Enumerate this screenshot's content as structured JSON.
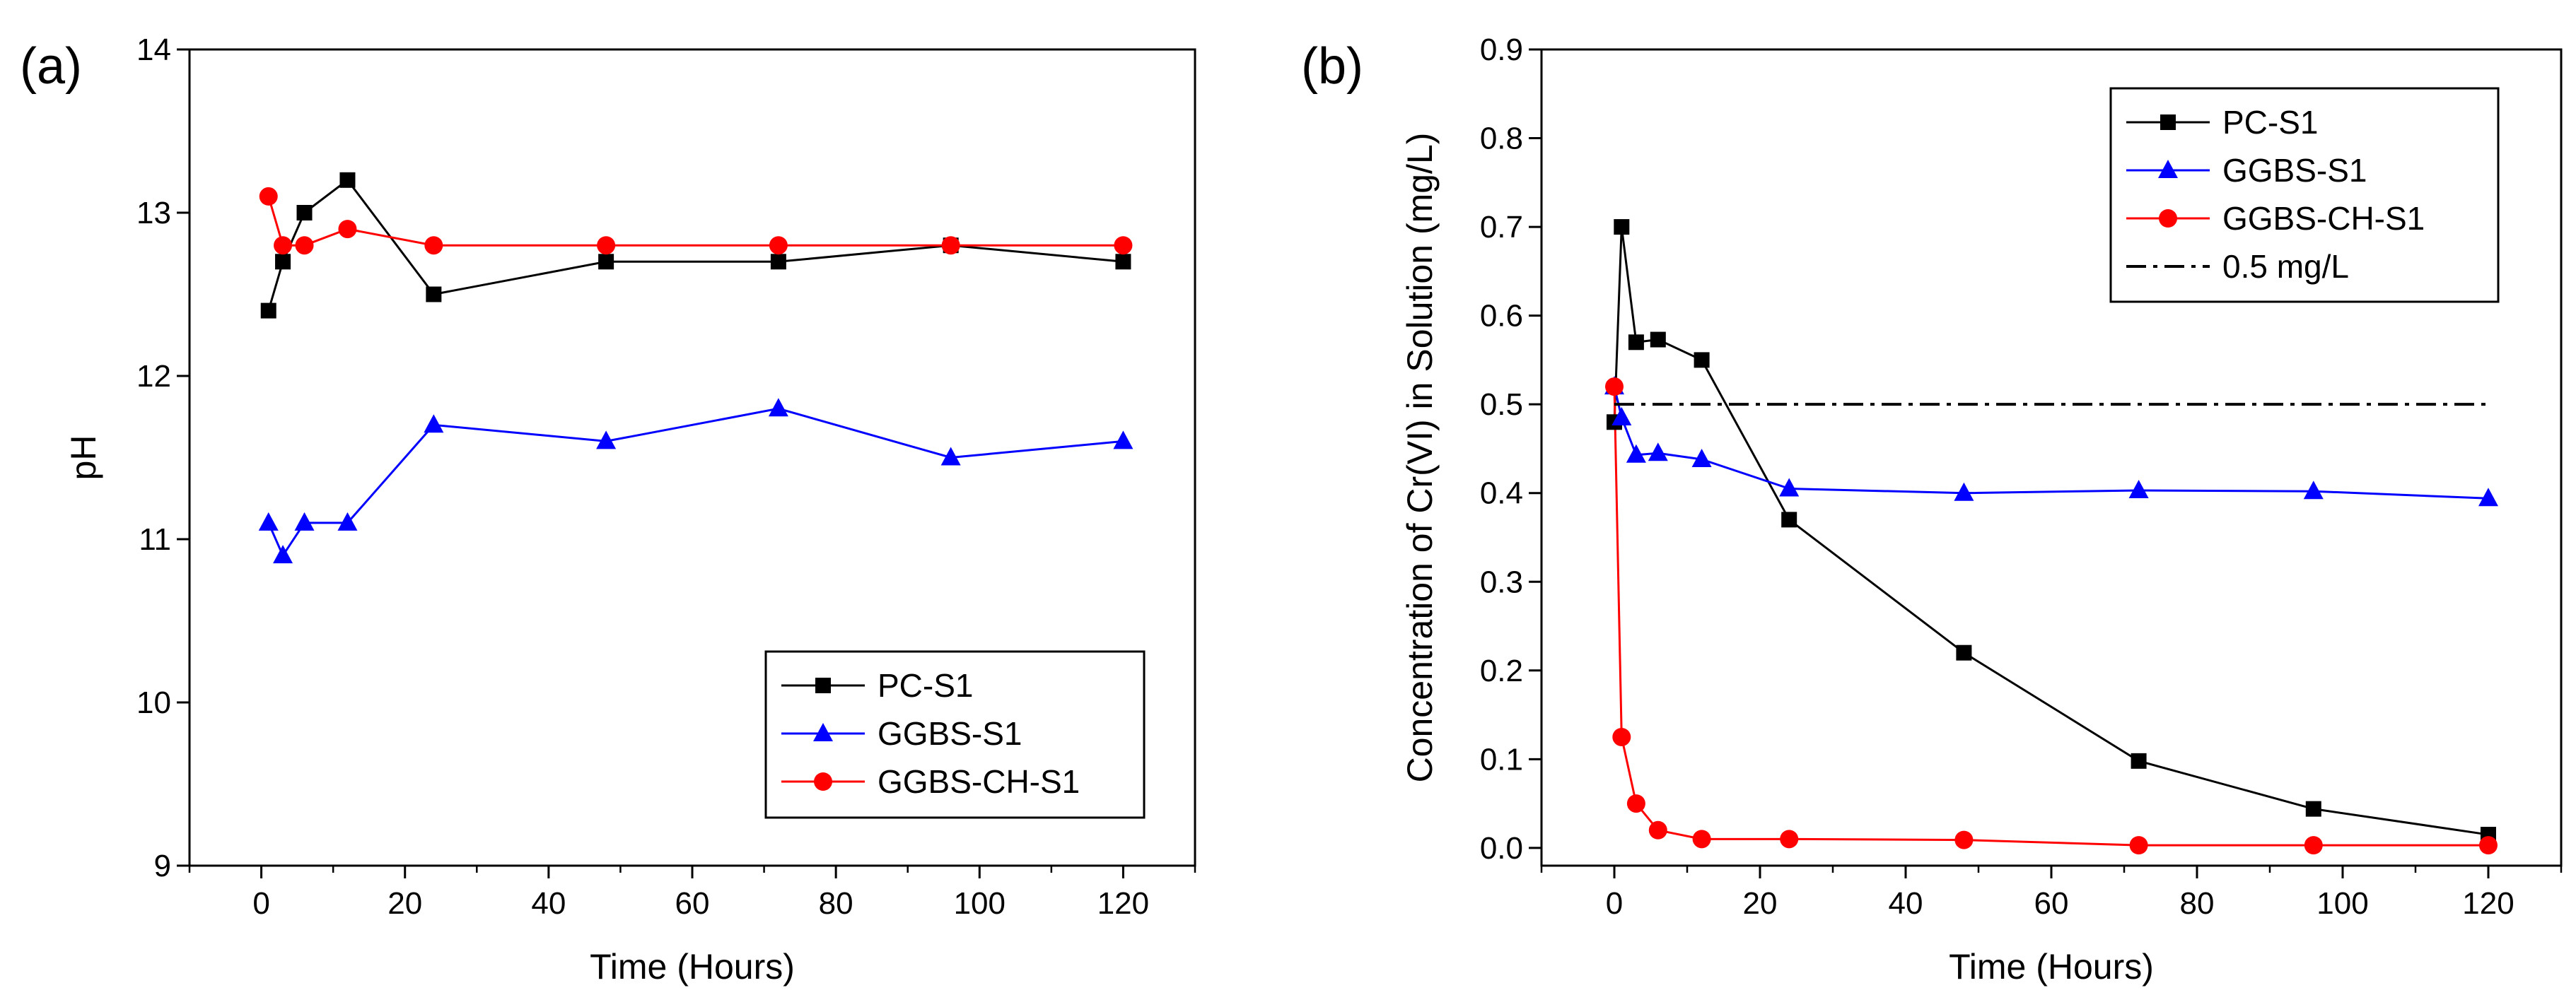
{
  "chart_data": [
    {
      "type": "line",
      "panel_label": "(a)",
      "title": "",
      "xlabel": "Time (Hours)",
      "ylabel": "pH",
      "xlim": [
        -10,
        130
      ],
      "ylim": [
        9,
        14
      ],
      "xticks": [
        0,
        20,
        40,
        60,
        80,
        100,
        120
      ],
      "yticks": [
        9,
        10,
        11,
        12,
        13,
        14
      ],
      "xtick_labels": [
        "0",
        "20",
        "40",
        "60",
        "80",
        "100",
        "120"
      ],
      "ytick_labels": [
        "9",
        "10",
        "11",
        "12",
        "13",
        "14"
      ],
      "legend_position": "bottom-right",
      "series": [
        {
          "name": "PC-S1",
          "color": "#000000",
          "marker": "square",
          "x": [
            1,
            3,
            6,
            12,
            24,
            48,
            72,
            96,
            120
          ],
          "y": [
            12.4,
            12.7,
            13.0,
            13.2,
            12.5,
            12.7,
            12.7,
            12.8,
            12.7
          ]
        },
        {
          "name": "GGBS-S1",
          "color": "#0000ff",
          "marker": "triangle",
          "x": [
            1,
            3,
            6,
            12,
            24,
            48,
            72,
            96,
            120
          ],
          "y": [
            11.1,
            10.9,
            11.1,
            11.1,
            11.7,
            11.6,
            11.8,
            11.5,
            11.6
          ]
        },
        {
          "name": "GGBS-CH-S1",
          "color": "#ff0000",
          "marker": "circle",
          "x": [
            1,
            3,
            6,
            12,
            24,
            48,
            72,
            96,
            120
          ],
          "y": [
            13.1,
            12.8,
            12.8,
            12.9,
            12.8,
            12.8,
            12.8,
            12.8,
            12.8
          ]
        }
      ]
    },
    {
      "type": "line",
      "panel_label": "(b)",
      "title": "",
      "xlabel": "Time (Hours)",
      "ylabel": "Concentration of Cr(VI) in Solution (mg/L)",
      "xlim": [
        -10,
        130
      ],
      "ylim": [
        -0.02,
        0.9
      ],
      "xticks": [
        0,
        20,
        40,
        60,
        80,
        100,
        120
      ],
      "yticks": [
        0.0,
        0.1,
        0.2,
        0.3,
        0.4,
        0.5,
        0.6,
        0.7,
        0.8,
        0.9
      ],
      "xtick_labels": [
        "0",
        "20",
        "40",
        "60",
        "80",
        "100",
        "120"
      ],
      "ytick_labels": [
        "0.0",
        "0.1",
        "0.2",
        "0.3",
        "0.4",
        "0.5",
        "0.6",
        "0.7",
        "0.8",
        "0.9"
      ],
      "legend_position": "top-right",
      "series": [
        {
          "name": "PC-S1",
          "color": "#000000",
          "marker": "square",
          "x": [
            0,
            1,
            3,
            6,
            12,
            24,
            48,
            72,
            96,
            120
          ],
          "y": [
            0.48,
            0.7,
            0.57,
            0.573,
            0.55,
            0.37,
            0.22,
            0.098,
            0.044,
            0.015
          ]
        },
        {
          "name": "GGBS-S1",
          "color": "#0000ff",
          "marker": "triangle",
          "x": [
            0,
            1,
            3,
            6,
            12,
            24,
            48,
            72,
            96,
            120
          ],
          "y": [
            0.52,
            0.485,
            0.443,
            0.445,
            0.438,
            0.405,
            0.4,
            0.403,
            0.402,
            0.394
          ]
        },
        {
          "name": "GGBS-CH-S1",
          "color": "#ff0000",
          "marker": "circle",
          "x": [
            0,
            1,
            3,
            6,
            12,
            24,
            48,
            72,
            96,
            120
          ],
          "y": [
            0.52,
            0.125,
            0.05,
            0.02,
            0.01,
            0.01,
            0.009,
            0.003,
            0.003,
            0.003
          ]
        }
      ],
      "reference_line": {
        "name": "0.5 mg/L",
        "y": 0.5,
        "x_start": 0,
        "x_end": 120,
        "color": "#000000",
        "style": "dash-dot"
      }
    }
  ]
}
